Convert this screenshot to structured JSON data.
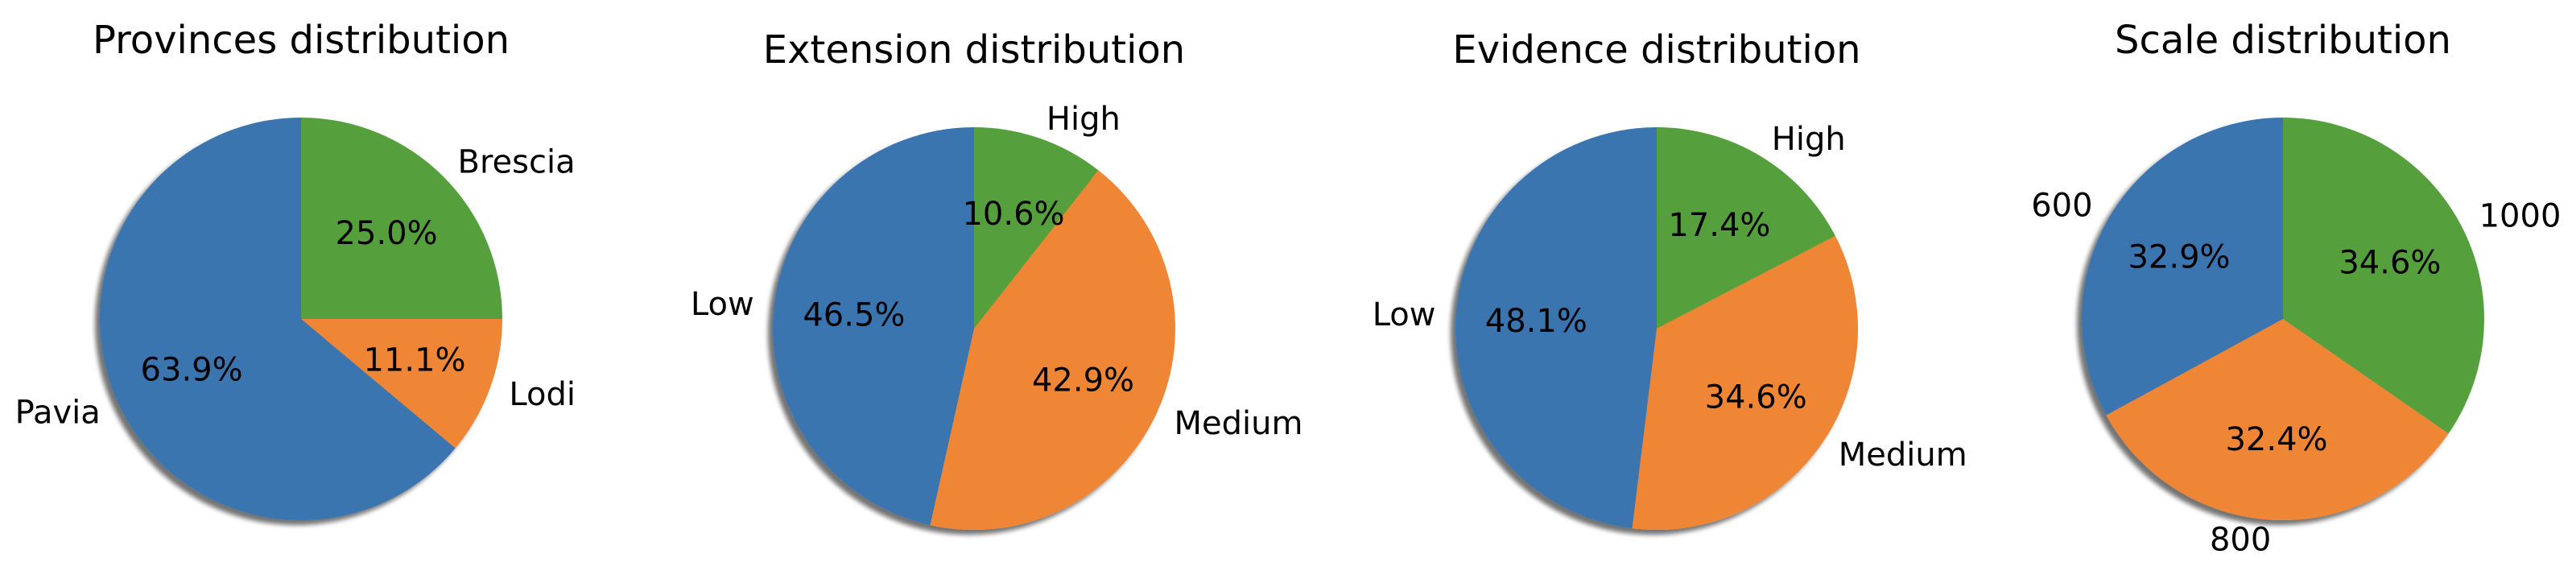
{
  "chart_data": [
    {
      "type": "pie",
      "title": "Provinces distribution",
      "categories": [
        "Brescia",
        "Lodi",
        "Pavia"
      ],
      "values": [
        25.0,
        11.1,
        63.9
      ],
      "value_labels": [
        "25.0%",
        "11.1%",
        "63.9%"
      ],
      "colors": [
        "#55a03c",
        "#ef8636",
        "#3b75af"
      ],
      "start_angle": 90,
      "direction": "clockwise",
      "shadow": true,
      "legend": "none"
    },
    {
      "type": "pie",
      "title": "Extension distribution",
      "categories": [
        "High",
        "Medium",
        "Low"
      ],
      "values": [
        10.6,
        42.9,
        46.5
      ],
      "value_labels": [
        "10.6%",
        "42.9%",
        "46.5%"
      ],
      "colors": [
        "#55a03c",
        "#ef8636",
        "#3b75af"
      ],
      "start_angle": 90,
      "direction": "clockwise",
      "shadow": true,
      "legend": "none"
    },
    {
      "type": "pie",
      "title": "Evidence distribution",
      "categories": [
        "High",
        "Medium",
        "Low"
      ],
      "values": [
        17.4,
        34.6,
        48.1
      ],
      "value_labels": [
        "17.4%",
        "34.6%",
        "48.1%"
      ],
      "colors": [
        "#55a03c",
        "#ef8636",
        "#3b75af"
      ],
      "start_angle": 90,
      "direction": "clockwise",
      "shadow": true,
      "legend": "none"
    },
    {
      "type": "pie",
      "title": "Scale distribution",
      "categories": [
        "1000",
        "800",
        "600"
      ],
      "values": [
        34.6,
        32.4,
        32.9
      ],
      "value_labels": [
        "34.6%",
        "32.4%",
        "32.9%"
      ],
      "colors": [
        "#55a03c",
        "#ef8636",
        "#3b75af"
      ],
      "start_angle": 90,
      "direction": "clockwise",
      "shadow": true,
      "legend": "none"
    }
  ]
}
